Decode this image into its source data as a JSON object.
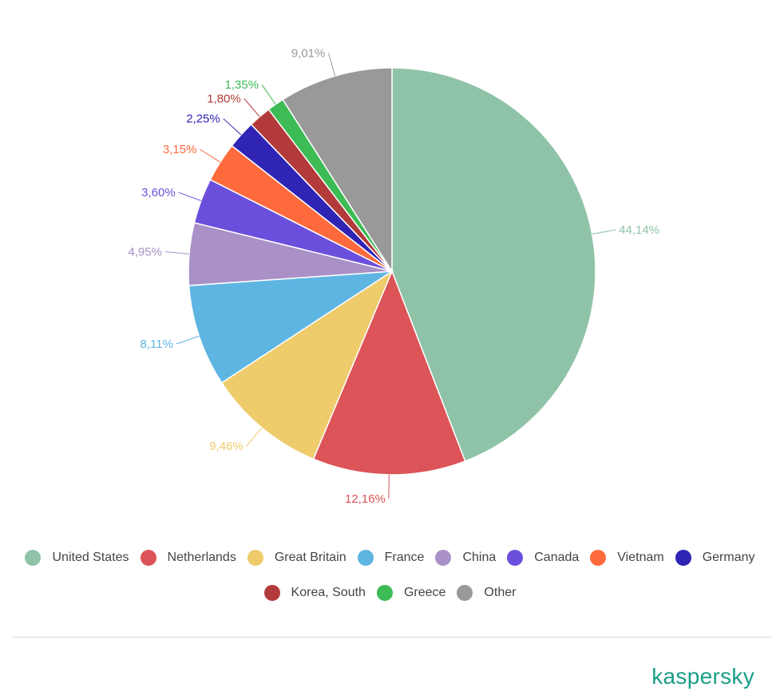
{
  "chart_data": {
    "type": "pie",
    "start_angle_deg": 0,
    "direction": "clockwise",
    "slices": [
      {
        "name": "United States",
        "value": 44.14,
        "label": "44,14%",
        "color": "#8fc3a7"
      },
      {
        "name": "Netherlands",
        "value": 12.16,
        "label": "12,16%",
        "color": "#dc5457"
      },
      {
        "name": "Great Britain",
        "value": 9.46,
        "label": "9,46%",
        "color": "#eecb6b"
      },
      {
        "name": "France",
        "value": 8.11,
        "label": "8,11%",
        "color": "#5fb5e2"
      },
      {
        "name": "China",
        "value": 4.95,
        "label": "4,95%",
        "color": "#a990c7"
      },
      {
        "name": "Canada",
        "value": 3.6,
        "label": "3,60%",
        "color": "#6b4fdc"
      },
      {
        "name": "Vietnam",
        "value": 3.15,
        "label": "3,15%",
        "color": "#ff6a3d"
      },
      {
        "name": "Germany",
        "value": 2.25,
        "label": "2,25%",
        "color": "#2f24b3"
      },
      {
        "name": "Korea, South",
        "value": 1.8,
        "label": "1,80%",
        "color": "#b23a3a"
      },
      {
        "name": "Greece",
        "value": 1.35,
        "label": "1,35%",
        "color": "#3dbb55"
      },
      {
        "name": "Other",
        "value": 9.01,
        "label": "9,01%",
        "color": "#999999"
      }
    ],
    "legend_position": "bottom"
  },
  "legend": {
    "row1": [
      "United States",
      "Netherlands",
      "Great Britain",
      "France",
      "China",
      "Canada",
      "Vietnam",
      "Germany"
    ],
    "row2": [
      "Korea, South",
      "Greece",
      "Other"
    ]
  },
  "brand": {
    "logo_text": "kaspersky",
    "color": "#1a9e85"
  }
}
